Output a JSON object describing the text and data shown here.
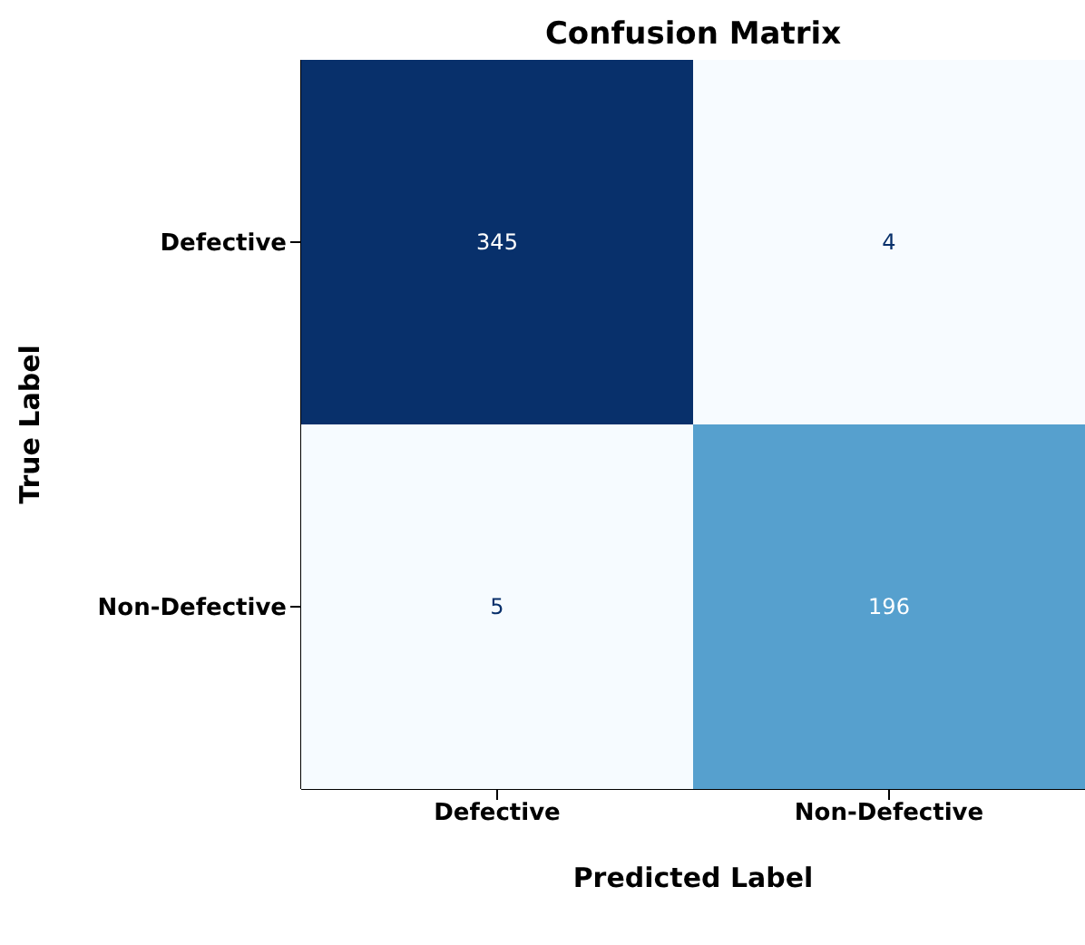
{
  "chart_data": {
    "type": "heatmap",
    "title": "Confusion Matrix",
    "xlabel": "Predicted Label",
    "ylabel": "True Label",
    "categories": [
      "Defective",
      "Non-Defective"
    ],
    "y_categories": [
      "Defective",
      "Non-Defective"
    ],
    "cells": [
      [
        345,
        4
      ],
      [
        5,
        196
      ]
    ],
    "data_labels": true
  }
}
